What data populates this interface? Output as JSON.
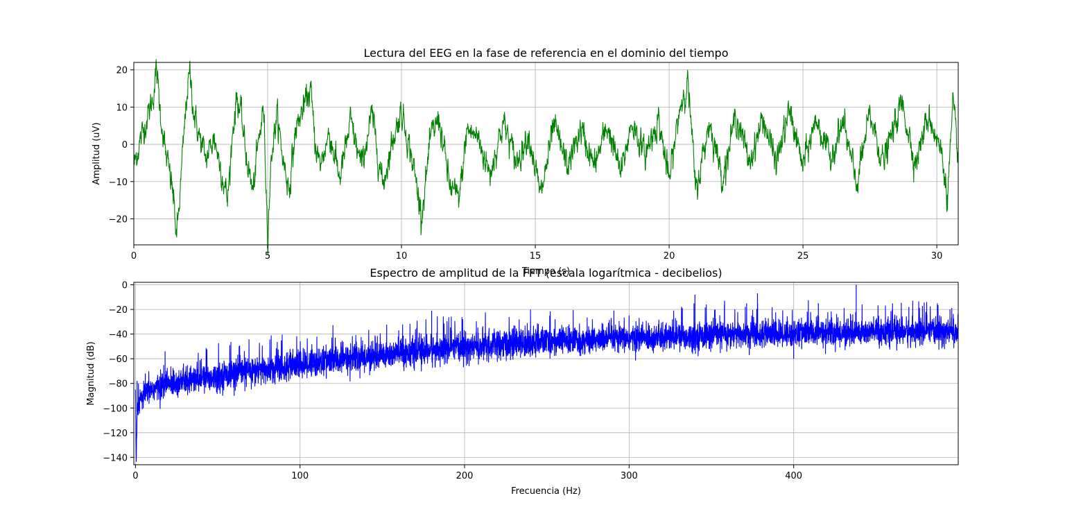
{
  "chart_data": [
    {
      "type": "line",
      "title": "Lectura del EEG en la fase de referencia en el dominio del tiempo",
      "xlabel": "Tiempo (s)",
      "ylabel": "Amplitud (uV)",
      "xlim": [
        0,
        30.8
      ],
      "ylim": [
        -27,
        22
      ],
      "xticks": [
        0,
        5,
        10,
        15,
        20,
        25,
        30
      ],
      "xtick_labels": [
        "0",
        "5",
        "10",
        "15",
        "20",
        "25",
        "30"
      ],
      "yticks": [
        -20,
        -10,
        0,
        10,
        20
      ],
      "ytick_labels": [
        "−20",
        "−10",
        "0",
        "10",
        "20"
      ],
      "grid": true,
      "legend": "none",
      "color": "#008000",
      "series": [
        {
          "x": [
            0,
            0.2,
            0.45,
            0.7,
            0.85,
            1.0,
            1.2,
            1.45,
            1.6,
            1.7,
            1.85,
            2.0,
            2.1,
            2.25,
            2.45,
            2.7,
            3.0,
            3.3,
            3.5,
            3.7,
            3.85,
            4.0,
            4.2,
            4.45,
            4.65,
            4.85,
            5.0,
            5.15,
            5.35,
            5.55,
            5.8,
            6.05,
            6.35,
            6.6,
            6.75,
            6.95,
            7.3,
            7.7,
            8.1,
            8.5,
            8.9,
            9.3,
            9.7,
            10.0,
            10.4,
            10.75,
            11.1,
            11.4,
            11.8,
            12.15,
            12.45,
            12.85,
            13.3,
            13.8,
            14.3,
            14.75,
            15.2,
            15.7,
            16.2,
            16.7,
            17.2,
            17.7,
            18.2,
            18.6,
            19.1,
            19.6,
            20.0,
            20.4,
            20.7,
            21.0,
            21.5,
            22.0,
            22.5,
            23.0,
            23.5,
            24.0,
            24.5,
            25.0,
            25.5,
            26.0,
            26.5,
            27.0,
            27.5,
            28.0,
            28.5,
            28.7,
            29.2,
            29.7,
            30.2,
            30.4,
            30.6,
            30.8
          ],
          "y": [
            -6,
            0,
            6,
            12,
            20,
            8,
            -3,
            -12,
            -25,
            -16,
            0,
            15,
            19,
            8,
            2,
            -4,
            2,
            -8,
            -15,
            4,
            13,
            8,
            -3,
            -13,
            0,
            10,
            -24,
            -2,
            8,
            -3,
            -12,
            4,
            10,
            15,
            2,
            -6,
            3,
            -9,
            6,
            -6,
            8,
            -11,
            2,
            9,
            -4,
            -19,
            2,
            7,
            -11,
            -15,
            4,
            2,
            -8,
            6,
            -5,
            3,
            -14,
            5,
            -6,
            4,
            -6,
            5,
            -8,
            6,
            -3,
            7,
            -10,
            10,
            17,
            -13,
            6,
            -9,
            8,
            -5,
            7,
            -5,
            9,
            -6,
            7,
            -4,
            6,
            -11,
            8,
            -5,
            7,
            11,
            -5,
            8,
            -3,
            -14,
            10,
            -3
          ]
        }
      ]
    },
    {
      "type": "line",
      "title": "Espectro de amplitud de la FFT (escala logarítmica - decibelios)",
      "xlabel": "Frecuencia (Hz)",
      "ylabel": "Magnitud (dB)",
      "xlim": [
        -1,
        500
      ],
      "ylim": [
        -146,
        2
      ],
      "xticks": [
        0,
        100,
        200,
        300,
        400
      ],
      "xtick_labels": [
        "0",
        "100",
        "200",
        "300",
        "400"
      ],
      "yticks": [
        -140,
        -120,
        -100,
        -80,
        -60,
        -40,
        -20,
        0
      ],
      "ytick_labels": [
        "−140",
        "−120",
        "−100",
        "−80",
        "−60",
        "−40",
        "−20",
        "0"
      ],
      "grid": true,
      "legend": "none",
      "color": "#0000ff",
      "series": [
        {
          "x": [
            0,
            0.5,
            1,
            2,
            3,
            5,
            8,
            12,
            18,
            25,
            35,
            50,
            70,
            90,
            110,
            130,
            150,
            170,
            190,
            210,
            230,
            250,
            270,
            290,
            310,
            330,
            350,
            370,
            390,
            410,
            430,
            450,
            470,
            490,
            500
          ],
          "y": [
            -84,
            -144,
            -103,
            -98,
            -94,
            -90,
            -86,
            -84,
            -81,
            -79,
            -77,
            -74,
            -70,
            -67,
            -63,
            -60,
            -57,
            -54,
            -52,
            -50,
            -48,
            -46,
            -45,
            -44,
            -43,
            -42,
            -41,
            -40,
            -40,
            -39,
            -39,
            -38,
            -38,
            -38,
            -38
          ],
          "band_width_db": [
            4,
            4,
            8,
            10,
            10,
            10,
            11,
            12,
            12,
            12,
            12,
            12,
            13,
            13,
            13,
            13,
            13,
            13,
            13,
            13,
            13,
            12,
            12,
            12,
            12,
            12,
            12,
            12,
            12,
            12,
            12,
            12,
            12,
            12,
            12
          ],
          "peaks": [
            {
              "x": 1,
              "y": -78
            },
            {
              "x": 6,
              "y": -72
            },
            {
              "x": 18,
              "y": -54
            },
            {
              "x": 40,
              "y": -60
            },
            {
              "x": 60,
              "y": -90
            },
            {
              "x": 108,
              "y": -56
            },
            {
              "x": 160,
              "y": -37
            },
            {
              "x": 180,
              "y": -21
            },
            {
              "x": 230,
              "y": -33
            },
            {
              "x": 255,
              "y": -28
            },
            {
              "x": 300,
              "y": -25
            },
            {
              "x": 340,
              "y": -8
            },
            {
              "x": 358,
              "y": -13
            },
            {
              "x": 373,
              "y": -57
            },
            {
              "x": 378,
              "y": -7
            },
            {
              "x": 400,
              "y": -60
            },
            {
              "x": 415,
              "y": -15
            },
            {
              "x": 438,
              "y": 0
            },
            {
              "x": 470,
              "y": -18
            },
            {
              "x": 495,
              "y": -20
            }
          ]
        }
      ]
    }
  ]
}
